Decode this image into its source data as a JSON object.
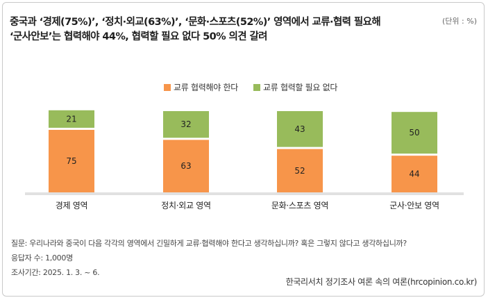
{
  "title": {
    "line1": "중국과 ‘경제(75%)’, ‘정치·외교(63%)’, ‘문화·스포츠(52%)’ 영역에서 교류·협력 필요해",
    "line2": "‘군사안보’는 협력해야 44%, 협력할 필요 없다 50% 의견 갈려"
  },
  "unit": "(단위 : %)",
  "colors": {
    "orange": "#f7954a",
    "green": "#98bb5b",
    "baseline": "#e1e1e1"
  },
  "chart_data": {
    "type": "bar",
    "stacked": true,
    "categories": [
      "경제 영역",
      "정치·외교 영역",
      "문화·스포츠 영역",
      "군사·안보 영역"
    ],
    "series": [
      {
        "name": "교류 협력해야 한다",
        "values": [
          75,
          63,
          52,
          44
        ],
        "color": "#f7954a"
      },
      {
        "name": "교류 협력할 필요 없다",
        "values": [
          21,
          32,
          43,
          50
        ],
        "color": "#98bb5b"
      }
    ],
    "ylim": [
      0,
      100
    ],
    "legend": "top-center",
    "grid": false
  },
  "footer": {
    "question": "질문: 우리나라와 중국이 다음 각각의 영역에서 긴밀하게 교류·협력해야 한다고 생각하십니까? 혹은 그렇지 않다고 생각하십니까?",
    "respondents": "응답자 수: 1,000명",
    "period": "조사기간: 2025. 1. 3. ~ 6.",
    "source": "한국리서치 정기조사 여론 속의 여론(hrcopinion.co.kr)"
  }
}
